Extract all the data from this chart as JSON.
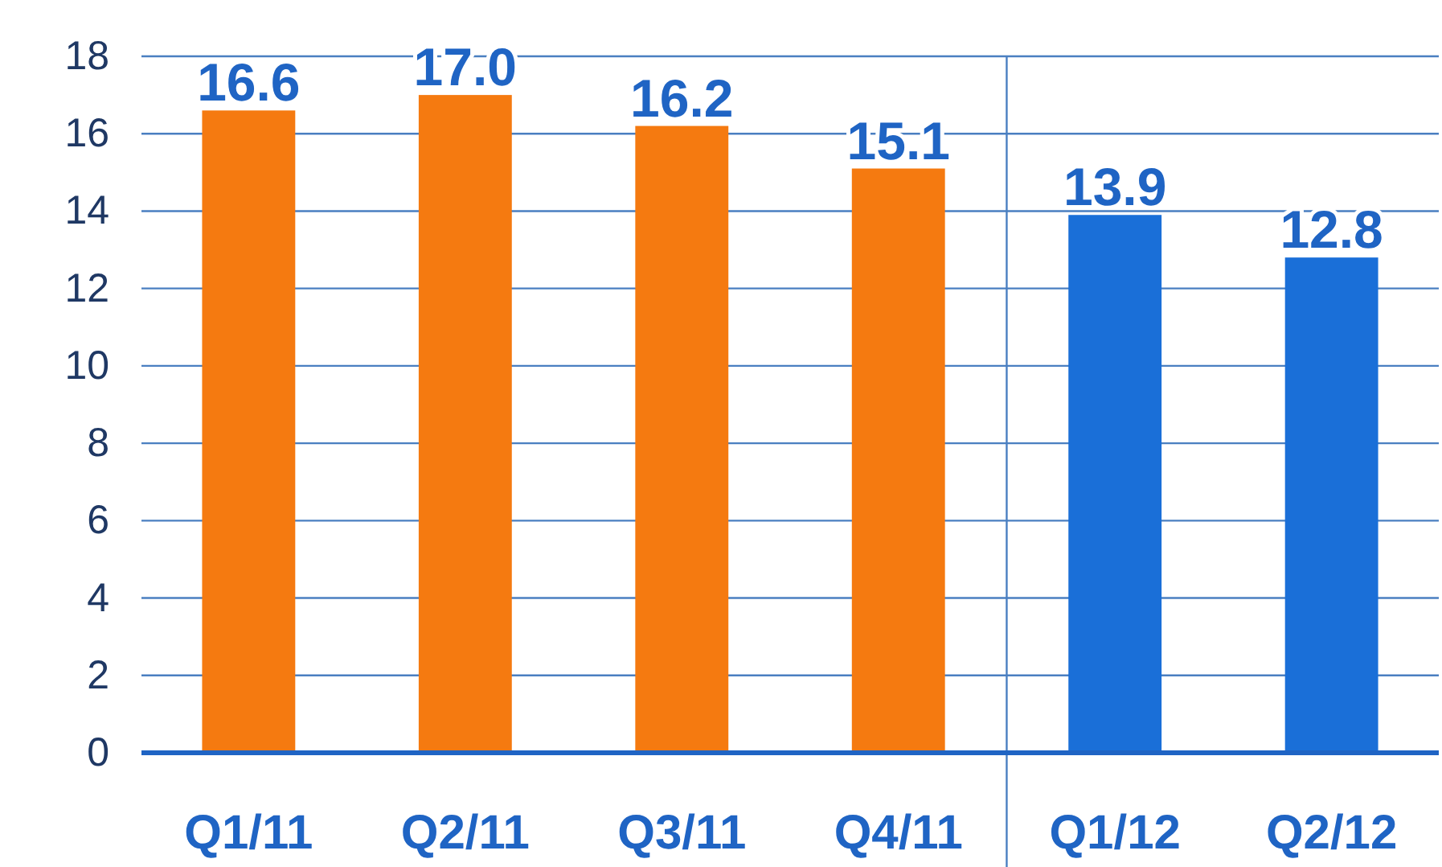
{
  "chart_data": {
    "type": "bar",
    "categories": [
      "Q1/11",
      "Q2/11",
      "Q3/11",
      "Q4/11",
      "Q1/12",
      "Q2/12"
    ],
    "values": [
      16.6,
      17.0,
      16.2,
      15.1,
      13.9,
      12.8
    ],
    "colors": [
      "#f57a10",
      "#f57a10",
      "#f57a10",
      "#f57a10",
      "#1a6fd8",
      "#1a6fd8"
    ],
    "ylim": [
      0,
      18
    ],
    "yticks": [
      0,
      2,
      4,
      6,
      8,
      10,
      12,
      14,
      16,
      18
    ],
    "grid": "y",
    "value_labels": [
      "16.6",
      "17.0",
      "16.2",
      "15.1",
      "13.9",
      "12.8"
    ]
  }
}
